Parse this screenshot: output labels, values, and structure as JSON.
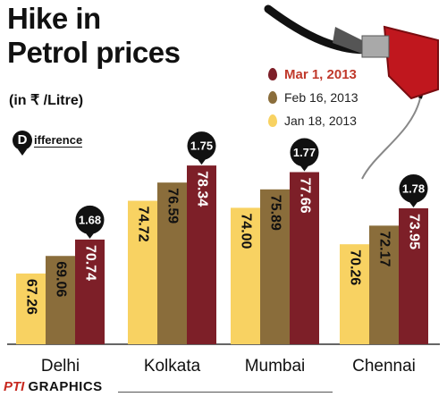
{
  "title_line1": "Hike in",
  "title_line2": "Petrol prices",
  "unit_label": "(in ₹ /Litre)",
  "difference_badge": "D",
  "difference_word": "ifference",
  "footer_brand": "PTI",
  "footer_text": "GRAPHICS",
  "colors": {
    "jan": "#f8d262",
    "feb": "#8a6d3b",
    "mar": "#7d1f28",
    "mar_text": "#c0392b",
    "bubble": "#111111"
  },
  "chart_data": {
    "type": "bar",
    "categories": [
      "Delhi",
      "Kolkata",
      "Mumbai",
      "Chennai"
    ],
    "series": [
      {
        "name": "Jan 18, 2013",
        "values": [
          67.26,
          74.72,
          74.0,
          70.26
        ],
        "labels": [
          "67.26",
          "74.72",
          "74.00",
          "70.26"
        ]
      },
      {
        "name": "Feb 16, 2013",
        "values": [
          69.06,
          76.59,
          75.89,
          72.17
        ],
        "labels": [
          "69.06",
          "76.59",
          "75.89",
          "72.17"
        ]
      },
      {
        "name": "Mar 1, 2013",
        "values": [
          70.74,
          78.34,
          77.66,
          73.95
        ],
        "labels": [
          "70.74",
          "78.34",
          "77.66",
          "73.95"
        ]
      }
    ],
    "difference": [
      "1.68",
      "1.75",
      "1.77",
      "1.78"
    ],
    "legend": [
      "Mar 1, 2013",
      "Feb 16, 2013",
      "Jan 18, 2013"
    ]
  }
}
